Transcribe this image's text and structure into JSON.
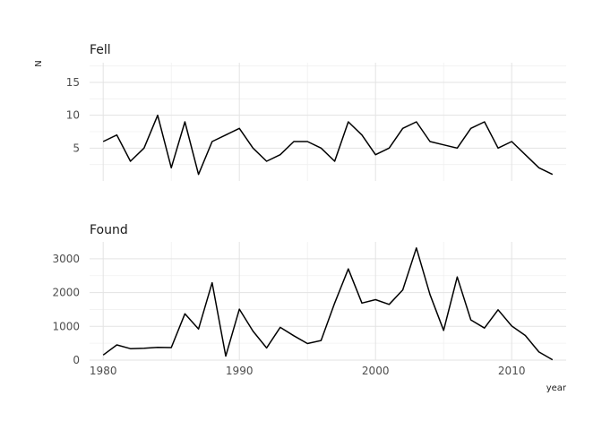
{
  "chart_data": {
    "type": "line",
    "xlabel": "year",
    "ylabel": "N",
    "xlim": [
      1979,
      2014
    ],
    "x_ticks": [
      1980,
      1990,
      2000,
      2010
    ],
    "grid": true,
    "line_color": "#000000",
    "panels": [
      {
        "title": "Fell",
        "ylim": [
          0,
          18
        ],
        "y_ticks": [
          5,
          10,
          15
        ],
        "x": [
          1980,
          1981,
          1982,
          1983,
          1984,
          1985,
          1986,
          1987,
          1988,
          1989,
          1990,
          1991,
          1992,
          1993,
          1994,
          1995,
          1996,
          1997,
          1998,
          1999,
          2000,
          2001,
          2002,
          2003,
          2004,
          2005,
          2006,
          2007,
          2008,
          2009,
          2010,
          2011,
          2012,
          2013
        ],
        "values": [
          6,
          7,
          3,
          5,
          10,
          2,
          9,
          1,
          6,
          7,
          8,
          5,
          3,
          4,
          6,
          6,
          5,
          3,
          9,
          7,
          4,
          5,
          8,
          9,
          6,
          5.5,
          5,
          8,
          9,
          5,
          6,
          4,
          2,
          1
        ]
      },
      {
        "title": "Found",
        "ylim": [
          0,
          3500
        ],
        "y_ticks": [
          0,
          1000,
          2000,
          3000
        ],
        "x": [
          1980,
          1981,
          1982,
          1983,
          1984,
          1985,
          1986,
          1987,
          1988,
          1989,
          1990,
          1991,
          1992,
          1993,
          1994,
          1995,
          1996,
          1997,
          1998,
          1999,
          2000,
          2001,
          2002,
          2003,
          2004,
          2005,
          2006,
          2007,
          2008,
          2009,
          2010,
          2011,
          2012,
          2013
        ],
        "values": [
          150,
          450,
          340,
          350,
          380,
          370,
          1370,
          920,
          2290,
          120,
          1510,
          860,
          360,
          970,
          720,
          490,
          580,
          1690,
          2700,
          1690,
          1790,
          1650,
          2080,
          3320,
          1940,
          880,
          2460,
          1190,
          950,
          1490,
          1010,
          730,
          240,
          10
        ]
      }
    ]
  }
}
